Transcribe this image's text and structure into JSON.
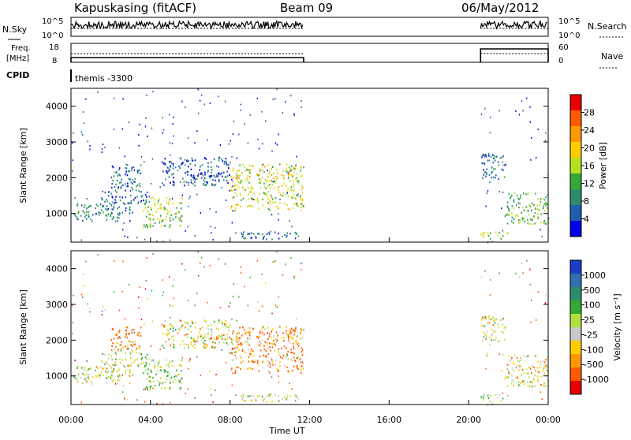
{
  "header": {
    "station": "Kapuskasing (fitACF)",
    "beam": "Beam 09",
    "date": "06/May/2012"
  },
  "top_panel": {
    "left_label": "N.Sky",
    "right_label": "N.Search",
    "left_ticks": [
      "10^5",
      "10^0"
    ],
    "right_ticks": [
      "10^5",
      "10^0"
    ]
  },
  "freq_panel": {
    "left_label_1": "Freq.",
    "left_label_2": "[MHz]",
    "right_label": "Nave",
    "left_ticks": [
      "18",
      "8"
    ],
    "right_ticks": [
      "60",
      "0"
    ]
  },
  "cpid": {
    "label": "CPID",
    "value": "themis -3300"
  },
  "power_panel": {
    "ylabel": "Slant Range [km]",
    "yticks": [
      "4000",
      "3000",
      "2000",
      "1000"
    ],
    "colorbar_label": "Power [dB]",
    "colorbar_ticks": [
      "28",
      "24",
      "20",
      "16",
      "12",
      "8",
      "4"
    ],
    "colorbar_colors": [
      "#e60000",
      "#ff5a00",
      "#ff9900",
      "#ffcc00",
      "#b8e020",
      "#33aa33",
      "#2e8b6e",
      "#1f5faf",
      "#0000e6"
    ]
  },
  "velocity_panel": {
    "ylabel": "Slant Range [km]",
    "yticks": [
      "4000",
      "3000",
      "2000",
      "1000"
    ],
    "colorbar_label": "Velocity [m s⁻¹]",
    "colorbar_ticks": [
      "1000",
      "500",
      "100",
      "25",
      "-25",
      "-100",
      "-500",
      "-1000"
    ],
    "colorbar_colors": [
      "#1e3cc8",
      "#2e6fb0",
      "#2e8b6e",
      "#33aa33",
      "#b0e040",
      "#c8c8c8",
      "#ffcc00",
      "#ff9900",
      "#ff5a00",
      "#e60000"
    ]
  },
  "xaxis": {
    "label": "Time UT",
    "ticks": [
      "00:00",
      "04:00",
      "08:00",
      "12:00",
      "16:00",
      "20:00",
      "00:00"
    ]
  },
  "chart_data": {
    "type": "heatmap",
    "title": "Kapuskasing (fitACF) Beam 09 06/May/2012",
    "xlabel": "Time UT",
    "ylabel": "Slant Range [km]",
    "xlim_hours": [
      0,
      24
    ],
    "ylim_km": [
      200,
      4500
    ],
    "power_range_db": [
      0,
      30
    ],
    "velocity_range": [
      -1000,
      1000
    ],
    "data_gap_hours": [
      11.7,
      20.6
    ],
    "echo_regions": [
      {
        "t_start": 0.0,
        "t_end": 3.0,
        "r_start": 800,
        "r_end": 1300,
        "power_db": 8,
        "velocity": 10
      },
      {
        "t_start": 1.5,
        "t_end": 4.0,
        "r_start": 1300,
        "r_end": 1700,
        "power_db": 6,
        "velocity": 20
      },
      {
        "t_start": 2.0,
        "t_end": 3.5,
        "r_start": 1700,
        "r_end": 2400,
        "power_db": 6,
        "velocity": -150
      },
      {
        "t_start": 3.6,
        "t_end": 5.6,
        "r_start": 600,
        "r_end": 1500,
        "power_db": 14,
        "velocity": 80
      },
      {
        "t_start": 4.5,
        "t_end": 8.0,
        "r_start": 1800,
        "r_end": 2600,
        "power_db": 5,
        "velocity": 10
      },
      {
        "t_start": 8.0,
        "t_end": 11.7,
        "r_start": 1100,
        "r_end": 2400,
        "power_db": 16,
        "velocity": -120
      },
      {
        "t_start": 8.0,
        "t_end": 11.5,
        "r_start": 300,
        "r_end": 500,
        "power_db": 6,
        "velocity": 20
      },
      {
        "t_start": 20.6,
        "t_end": 21.9,
        "r_start": 2000,
        "r_end": 2700,
        "power_db": 7,
        "velocity": 10
      },
      {
        "t_start": 20.6,
        "t_end": 22.0,
        "r_start": 300,
        "r_end": 500,
        "power_db": 14,
        "velocity": 60
      },
      {
        "t_start": 21.8,
        "t_end": 24.0,
        "r_start": 700,
        "r_end": 1600,
        "power_db": 12,
        "velocity": -20
      }
    ]
  }
}
